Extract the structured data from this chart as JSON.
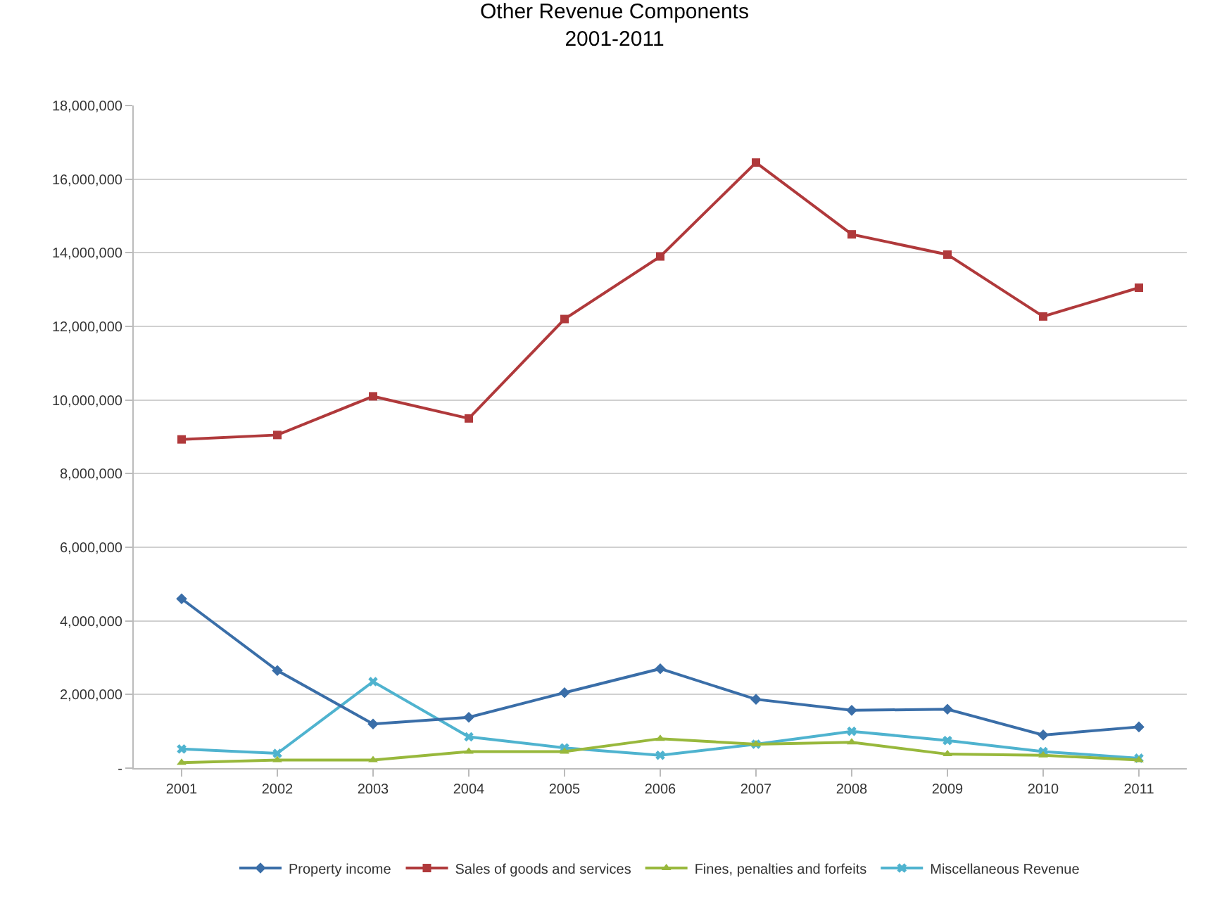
{
  "chart_data": {
    "type": "line",
    "title": "Other Revenue Components\n2001-2011",
    "categories": [
      "2001",
      "2002",
      "2003",
      "2004",
      "2005",
      "2006",
      "2007",
      "2008",
      "2009",
      "2010",
      "2011"
    ],
    "series": [
      {
        "name": "Property income",
        "color": "#3a6ea8",
        "marker": "diamond",
        "values": [
          4600000,
          2650000,
          1200000,
          1380000,
          2050000,
          2700000,
          1870000,
          1570000,
          1600000,
          900000,
          1120000
        ]
      },
      {
        "name": "Sales of goods and services",
        "color": "#b0393b",
        "marker": "square",
        "values": [
          8930000,
          9050000,
          10100000,
          9500000,
          12200000,
          13900000,
          16450000,
          14500000,
          13950000,
          12270000,
          13050000
        ]
      },
      {
        "name": "Fines, penalties and forfeits",
        "color": "#98b83c",
        "marker": "triangle",
        "values": [
          150000,
          220000,
          220000,
          450000,
          450000,
          800000,
          650000,
          700000,
          380000,
          350000,
          220000
        ]
      },
      {
        "name": "Miscellaneous Revenue",
        "color": "#4fb3cf",
        "marker": "cross",
        "values": [
          520000,
          400000,
          2350000,
          850000,
          550000,
          350000,
          650000,
          1000000,
          750000,
          450000,
          270000
        ]
      }
    ],
    "ylim": [
      0,
      18000000
    ],
    "yticks": [
      {
        "value": 0,
        "label": "-"
      },
      {
        "value": 2000000,
        "label": "2,000,000"
      },
      {
        "value": 4000000,
        "label": "4,000,000"
      },
      {
        "value": 6000000,
        "label": "6,000,000"
      },
      {
        "value": 8000000,
        "label": "8,000,000"
      },
      {
        "value": 10000000,
        "label": "10,000,000"
      },
      {
        "value": 12000000,
        "label": "12,000,000"
      },
      {
        "value": 14000000,
        "label": "14,000,000"
      },
      {
        "value": 16000000,
        "label": "16,000,000"
      },
      {
        "value": 18000000,
        "label": "18,000,000"
      }
    ],
    "grid": "y",
    "legend": "bottom"
  }
}
